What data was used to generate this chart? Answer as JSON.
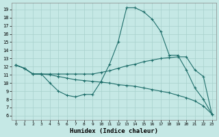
{
  "xlabel": "Humidex (Indice chaleur)",
  "bg_color": "#c5e8e5",
  "grid_color": "#a8d0cc",
  "line_color": "#1e6e6a",
  "xlim": [
    -0.5,
    23.5
  ],
  "ylim": [
    5.5,
    19.8
  ],
  "yticks": [
    6,
    7,
    8,
    9,
    10,
    11,
    12,
    13,
    14,
    15,
    16,
    17,
    18,
    19
  ],
  "xticks": [
    0,
    1,
    2,
    3,
    4,
    5,
    6,
    7,
    8,
    9,
    10,
    11,
    12,
    13,
    14,
    15,
    16,
    17,
    18,
    19,
    20,
    21,
    22,
    23
  ],
  "line1_x": [
    0,
    1,
    2,
    3,
    4,
    5,
    6,
    7,
    8,
    9,
    10,
    11,
    12,
    13,
    14,
    15,
    16,
    17,
    18,
    19,
    20,
    21,
    22,
    23
  ],
  "line1_y": [
    12.2,
    11.8,
    11.1,
    11.1,
    10.0,
    9.0,
    8.5,
    8.3,
    8.6,
    8.6,
    10.2,
    12.3,
    15.0,
    19.2,
    19.2,
    18.7,
    17.8,
    16.3,
    13.4,
    13.4,
    11.6,
    9.4,
    8.0,
    6.2
  ],
  "line2_x": [
    0,
    1,
    2,
    3,
    4,
    5,
    6,
    7,
    8,
    9,
    10,
    11,
    12,
    13,
    14,
    15,
    16,
    17,
    18,
    19,
    20,
    21,
    22,
    23
  ],
  "line2_y": [
    12.2,
    11.8,
    11.1,
    11.1,
    11.1,
    11.1,
    11.1,
    11.1,
    11.1,
    11.1,
    11.3,
    11.5,
    11.8,
    12.1,
    12.3,
    12.6,
    12.8,
    13.0,
    13.1,
    13.2,
    13.2,
    11.6,
    10.8,
    6.2
  ],
  "line3_x": [
    0,
    1,
    2,
    3,
    4,
    5,
    6,
    7,
    8,
    9,
    10,
    11,
    12,
    13,
    14,
    15,
    16,
    17,
    18,
    19,
    20,
    21,
    22,
    23
  ],
  "line3_y": [
    12.2,
    11.8,
    11.1,
    11.1,
    11.0,
    10.8,
    10.6,
    10.4,
    10.3,
    10.2,
    10.1,
    10.0,
    9.8,
    9.7,
    9.6,
    9.4,
    9.2,
    9.0,
    8.8,
    8.5,
    8.2,
    7.8,
    7.2,
    6.2
  ]
}
